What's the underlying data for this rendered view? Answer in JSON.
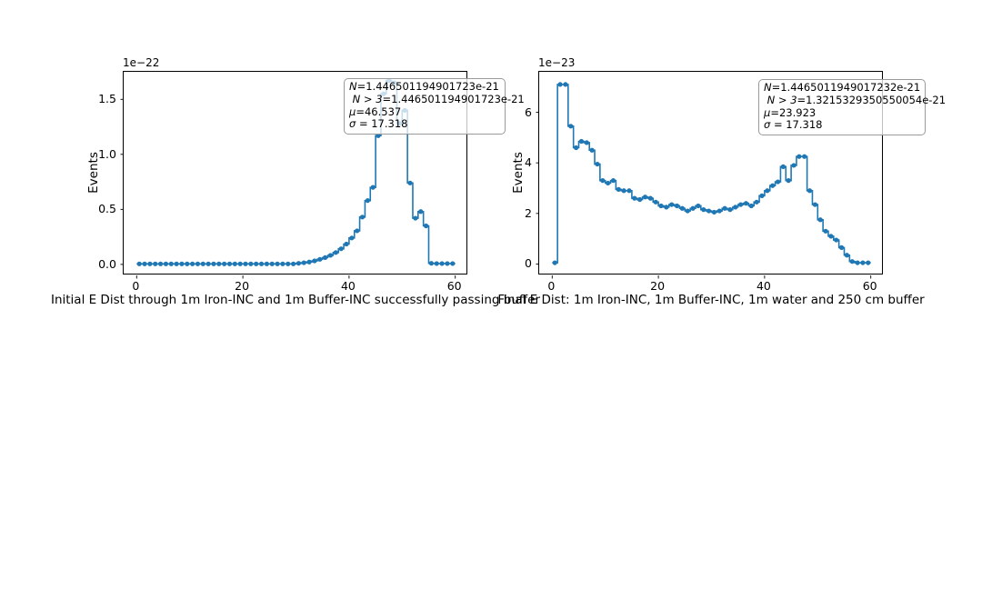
{
  "figure": {
    "background": "#ffffff",
    "accent_line_color": "#1f77b4",
    "spine_color": "#000000",
    "stats_box_border": "#9a9a9a"
  },
  "chart_data": [
    {
      "type": "histogram-step-line",
      "side": "left",
      "offset_text": "1e−22",
      "ylabel": "Events",
      "xlabel": "Initial E Dist through 1m Iron-INC and 1m Buffer-INC successfully passing buffer",
      "x_ticks": [
        0,
        20,
        40,
        60
      ],
      "y_ticks": [
        {
          "label": "0.0",
          "value": 0.0
        },
        {
          "label": "0.5",
          "value": 0.5
        },
        {
          "label": "1.0",
          "value": 1.0
        },
        {
          "label": "1.5",
          "value": 1.5
        }
      ],
      "xlim": [
        -2.45,
        62.45
      ],
      "ylim": [
        -0.1,
        1.75
      ],
      "grid": false,
      "bin_start": 0.5,
      "bin_width": 1,
      "values_unit_scale": "1e-22",
      "values": [
        0.005,
        0.005,
        0.005,
        0.005,
        0.005,
        0.005,
        0.005,
        0.005,
        0.005,
        0.005,
        0.005,
        0.005,
        0.005,
        0.005,
        0.005,
        0.005,
        0.005,
        0.005,
        0.005,
        0.005,
        0.005,
        0.005,
        0.005,
        0.005,
        0.005,
        0.005,
        0.005,
        0.005,
        0.005,
        0.005,
        0.01,
        0.015,
        0.022,
        0.032,
        0.046,
        0.062,
        0.082,
        0.108,
        0.142,
        0.185,
        0.24,
        0.305,
        0.43,
        0.58,
        0.7,
        1.17,
        1.55,
        1.67,
        1.65,
        1.28,
        1.4,
        0.74,
        0.42,
        0.48,
        0.35,
        0.01,
        0.008,
        0.008,
        0.008,
        0.008
      ],
      "stats_lines": [
        {
          "v": "N",
          "t": "=1.446501194901723e-21"
        },
        {
          "v": " N > 3",
          "t": "=1.446501194901723e-21"
        },
        {
          "v": "μ",
          "t": "=46.537"
        },
        {
          "v": "σ",
          "t": " = 17.318"
        }
      ]
    },
    {
      "type": "histogram-step-line",
      "side": "right",
      "offset_text": "1e−23",
      "ylabel": "Events",
      "xlabel": "Final E Dist: 1m Iron-INC, 1m Buffer-INC, 1m water and 250 cm buffer",
      "x_ticks": [
        0,
        20,
        40,
        60
      ],
      "y_ticks": [
        {
          "label": "0",
          "value": 0
        },
        {
          "label": "2",
          "value": 2
        },
        {
          "label": "4",
          "value": 4
        },
        {
          "label": "6",
          "value": 6
        }
      ],
      "xlim": [
        -2.45,
        62.45
      ],
      "ylim": [
        -0.45,
        7.6
      ],
      "grid": false,
      "bin_start": 0.5,
      "bin_width": 1,
      "values_unit_scale": "1e-23",
      "values": [
        0.05,
        7.1,
        7.1,
        5.45,
        4.6,
        4.85,
        4.8,
        4.5,
        3.95,
        3.3,
        3.2,
        3.3,
        2.95,
        2.9,
        2.9,
        2.6,
        2.55,
        2.65,
        2.6,
        2.45,
        2.3,
        2.25,
        2.35,
        2.3,
        2.2,
        2.1,
        2.2,
        2.3,
        2.15,
        2.1,
        2.05,
        2.1,
        2.2,
        2.15,
        2.25,
        2.35,
        2.4,
        2.3,
        2.45,
        2.7,
        2.9,
        3.1,
        3.25,
        3.85,
        3.3,
        3.9,
        4.25,
        4.25,
        2.9,
        2.35,
        1.75,
        1.3,
        1.1,
        0.95,
        0.65,
        0.35,
        0.1,
        0.05,
        0.05,
        0.05
      ],
      "stats_lines": [
        {
          "v": "N",
          "t": "=1.4465011949017232e-21"
        },
        {
          "v": " N > 3",
          "t": "=1.3215329350550054e-21"
        },
        {
          "v": "μ",
          "t": "=23.923"
        },
        {
          "v": "σ",
          "t": " = 17.318"
        }
      ]
    }
  ]
}
